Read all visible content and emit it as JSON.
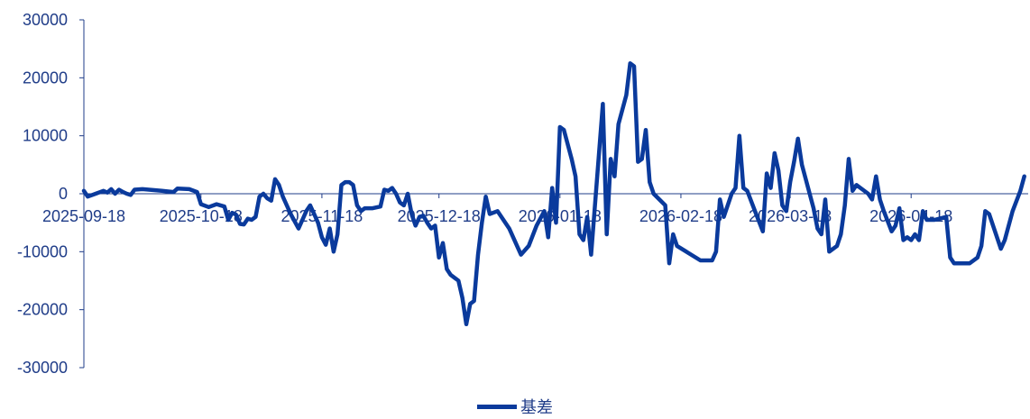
{
  "chart_data": {
    "type": "line",
    "title": "",
    "xlabel": "",
    "ylabel": "",
    "ylim": [
      -30000,
      30000
    ],
    "y_ticks": [
      "30000",
      "20000",
      "10000",
      "0",
      "-10000",
      "-20000",
      "-30000"
    ],
    "x_ticks": [
      "2025-09-18",
      "2025-10-18",
      "2025-11-18",
      "2025-12-18",
      "2026-01-18",
      "2026-02-18",
      "2026-03-18",
      "2026-04-18"
    ],
    "x_range": [
      "2025-09-18",
      "2026-05-18"
    ],
    "grid": false,
    "legend_position": "bottom-center",
    "series": [
      {
        "name": "基差",
        "color": "#0a3a9c",
        "points": [
          [
            "2025-09-18",
            500
          ],
          [
            "2025-09-19",
            -500
          ],
          [
            "2025-09-21",
            0
          ],
          [
            "2025-09-23",
            500
          ],
          [
            "2025-09-24",
            200
          ],
          [
            "2025-09-25",
            800
          ],
          [
            "2025-09-26",
            0
          ],
          [
            "2025-09-27",
            700
          ],
          [
            "2025-09-28",
            300
          ],
          [
            "2025-09-29",
            0
          ],
          [
            "2025-09-30",
            -200
          ],
          [
            "2025-10-01",
            700
          ],
          [
            "2025-10-03",
            800
          ],
          [
            "2025-10-08",
            500
          ],
          [
            "2025-10-11",
            300
          ],
          [
            "2025-10-12",
            900
          ],
          [
            "2025-10-15",
            800
          ],
          [
            "2025-10-17",
            300
          ],
          [
            "2025-10-18",
            -1800
          ],
          [
            "2025-10-20",
            -2300
          ],
          [
            "2025-10-22",
            -1800
          ],
          [
            "2025-10-24",
            -2200
          ],
          [
            "2025-10-25",
            -4500
          ],
          [
            "2025-10-26",
            -3300
          ],
          [
            "2025-10-27",
            -3600
          ],
          [
            "2025-10-28",
            -5200
          ],
          [
            "2025-10-29",
            -5300
          ],
          [
            "2025-10-30",
            -4300
          ],
          [
            "2025-10-31",
            -4500
          ],
          [
            "2025-11-01",
            -4000
          ],
          [
            "2025-11-02",
            -500
          ],
          [
            "2025-11-03",
            0
          ],
          [
            "2025-11-04",
            -800
          ],
          [
            "2025-11-05",
            -1200
          ],
          [
            "2025-11-06",
            2500
          ],
          [
            "2025-11-07",
            1500
          ],
          [
            "2025-11-08",
            -500
          ],
          [
            "2025-11-10",
            -3500
          ],
          [
            "2025-11-12",
            -6000
          ],
          [
            "2025-11-13",
            -4500
          ],
          [
            "2025-11-14",
            -3000
          ],
          [
            "2025-11-15",
            -2000
          ],
          [
            "2025-11-16",
            -3500
          ],
          [
            "2025-11-17",
            -5000
          ],
          [
            "2025-11-18",
            -7500
          ],
          [
            "2025-11-19",
            -8800
          ],
          [
            "2025-11-20",
            -6000
          ],
          [
            "2025-11-21",
            -10000
          ],
          [
            "2025-11-22",
            -7000
          ],
          [
            "2025-11-23",
            1500
          ],
          [
            "2025-11-24",
            2000
          ],
          [
            "2025-11-25",
            2000
          ],
          [
            "2025-11-26",
            1500
          ],
          [
            "2025-11-27",
            -2000
          ],
          [
            "2025-11-28",
            -3000
          ],
          [
            "2025-11-29",
            -2500
          ],
          [
            "2025-12-01",
            -2500
          ],
          [
            "2025-12-03",
            -2200
          ],
          [
            "2025-12-04",
            700
          ],
          [
            "2025-12-05",
            500
          ],
          [
            "2025-12-06",
            1000
          ],
          [
            "2025-12-07",
            0
          ],
          [
            "2025-12-08",
            -1500
          ],
          [
            "2025-12-09",
            -2000
          ],
          [
            "2025-12-10",
            0
          ],
          [
            "2025-12-11",
            -3500
          ],
          [
            "2025-12-12",
            -5500
          ],
          [
            "2025-12-13",
            -4000
          ],
          [
            "2025-12-14",
            -3800
          ],
          [
            "2025-12-15",
            -5000
          ],
          [
            "2025-12-16",
            -6000
          ],
          [
            "2025-12-17",
            -5500
          ],
          [
            "2025-12-18",
            -11000
          ],
          [
            "2025-12-19",
            -8500
          ],
          [
            "2025-12-20",
            -13000
          ],
          [
            "2025-12-21",
            -14000
          ],
          [
            "2025-12-22",
            -14500
          ],
          [
            "2025-12-23",
            -15000
          ],
          [
            "2025-12-24",
            -18000
          ],
          [
            "2025-12-25",
            -22500
          ],
          [
            "2025-12-26",
            -19000
          ],
          [
            "2025-12-27",
            -18500
          ],
          [
            "2025-12-28",
            -10500
          ],
          [
            "2025-12-29",
            -5000
          ],
          [
            "2025-12-30",
            -500
          ],
          [
            "2025-12-31",
            -3500
          ],
          [
            "2026-01-02",
            -3000
          ],
          [
            "2026-01-05",
            -6000
          ],
          [
            "2026-01-08",
            -10500
          ],
          [
            "2026-01-10",
            -9000
          ],
          [
            "2026-01-12",
            -5500
          ],
          [
            "2026-01-14",
            -3000
          ],
          [
            "2026-01-15",
            -7500
          ],
          [
            "2026-01-16",
            1000
          ],
          [
            "2026-01-17",
            -5000
          ],
          [
            "2026-01-18",
            11500
          ],
          [
            "2026-01-19",
            11000
          ],
          [
            "2026-01-21",
            6000
          ],
          [
            "2026-01-22",
            3000
          ],
          [
            "2026-01-23",
            -7000
          ],
          [
            "2026-01-24",
            -8000
          ],
          [
            "2026-01-25",
            -4000
          ],
          [
            "2026-01-26",
            -10500
          ],
          [
            "2026-01-29",
            15500
          ],
          [
            "2026-01-30",
            -7000
          ],
          [
            "2026-01-31",
            6000
          ],
          [
            "2026-02-01",
            3000
          ],
          [
            "2026-02-02",
            12000
          ],
          [
            "2026-02-04",
            17000
          ],
          [
            "2026-02-05",
            22500
          ],
          [
            "2026-02-06",
            22000
          ],
          [
            "2026-02-07",
            5500
          ],
          [
            "2026-02-08",
            6000
          ],
          [
            "2026-02-09",
            11000
          ],
          [
            "2026-02-10",
            2000
          ],
          [
            "2026-02-11",
            0
          ],
          [
            "2026-02-14",
            -2000
          ],
          [
            "2026-02-15",
            -12000
          ],
          [
            "2026-02-16",
            -7000
          ],
          [
            "2026-02-17",
            -9000
          ],
          [
            "2026-02-23",
            -11500
          ],
          [
            "2026-02-26",
            -11500
          ],
          [
            "2026-02-27",
            -10000
          ],
          [
            "2026-02-28",
            -1000
          ],
          [
            "2026-03-01",
            -4000
          ],
          [
            "2026-03-03",
            0
          ],
          [
            "2026-03-04",
            1000
          ],
          [
            "2026-03-05",
            10000
          ],
          [
            "2026-03-06",
            1000
          ],
          [
            "2026-03-07",
            500
          ],
          [
            "2026-03-09",
            -3000
          ],
          [
            "2026-03-11",
            -6500
          ],
          [
            "2026-03-12",
            3500
          ],
          [
            "2026-03-13",
            1000
          ],
          [
            "2026-03-14",
            7000
          ],
          [
            "2026-03-15",
            4000
          ],
          [
            "2026-03-16",
            -2000
          ],
          [
            "2026-03-17",
            -3000
          ],
          [
            "2026-03-18",
            2000
          ],
          [
            "2026-03-19",
            5500
          ],
          [
            "2026-03-20",
            9500
          ],
          [
            "2026-03-21",
            5000
          ],
          [
            "2026-03-24",
            -2500
          ],
          [
            "2026-03-25",
            -6000
          ],
          [
            "2026-03-26",
            -7000
          ],
          [
            "2026-03-27",
            -1000
          ],
          [
            "2026-03-28",
            -10000
          ],
          [
            "2026-03-30",
            -9000
          ],
          [
            "2026-03-31",
            -7000
          ],
          [
            "2026-04-01",
            -2000
          ],
          [
            "2026-04-02",
            6000
          ],
          [
            "2026-04-03",
            500
          ],
          [
            "2026-04-04",
            1500
          ],
          [
            "2026-04-07",
            0
          ],
          [
            "2026-04-08",
            -1000
          ],
          [
            "2026-04-09",
            3000
          ],
          [
            "2026-04-10",
            -1000
          ],
          [
            "2026-04-11",
            -3000
          ],
          [
            "2026-04-13",
            -6500
          ],
          [
            "2026-04-14",
            -5500
          ],
          [
            "2026-04-15",
            -2500
          ],
          [
            "2026-04-16",
            -8000
          ],
          [
            "2026-04-17",
            -7500
          ],
          [
            "2026-04-18",
            -8000
          ],
          [
            "2026-04-19",
            -7000
          ],
          [
            "2026-04-20",
            -8000
          ],
          [
            "2026-04-21",
            -3000
          ],
          [
            "2026-04-22",
            -4500
          ],
          [
            "2026-04-24",
            -4500
          ],
          [
            "2026-04-27",
            -4000
          ],
          [
            "2026-04-28",
            -11000
          ],
          [
            "2026-04-29",
            -12000
          ],
          [
            "2026-05-03",
            -12000
          ],
          [
            "2026-05-05",
            -11000
          ],
          [
            "2026-05-06",
            -9000
          ],
          [
            "2026-05-07",
            -3000
          ],
          [
            "2026-05-08",
            -3500
          ],
          [
            "2026-05-11",
            -9500
          ],
          [
            "2026-05-12",
            -8000
          ],
          [
            "2026-05-14",
            -3000
          ],
          [
            "2026-05-16",
            500
          ],
          [
            "2026-05-17",
            3000
          ]
        ]
      }
    ]
  }
}
